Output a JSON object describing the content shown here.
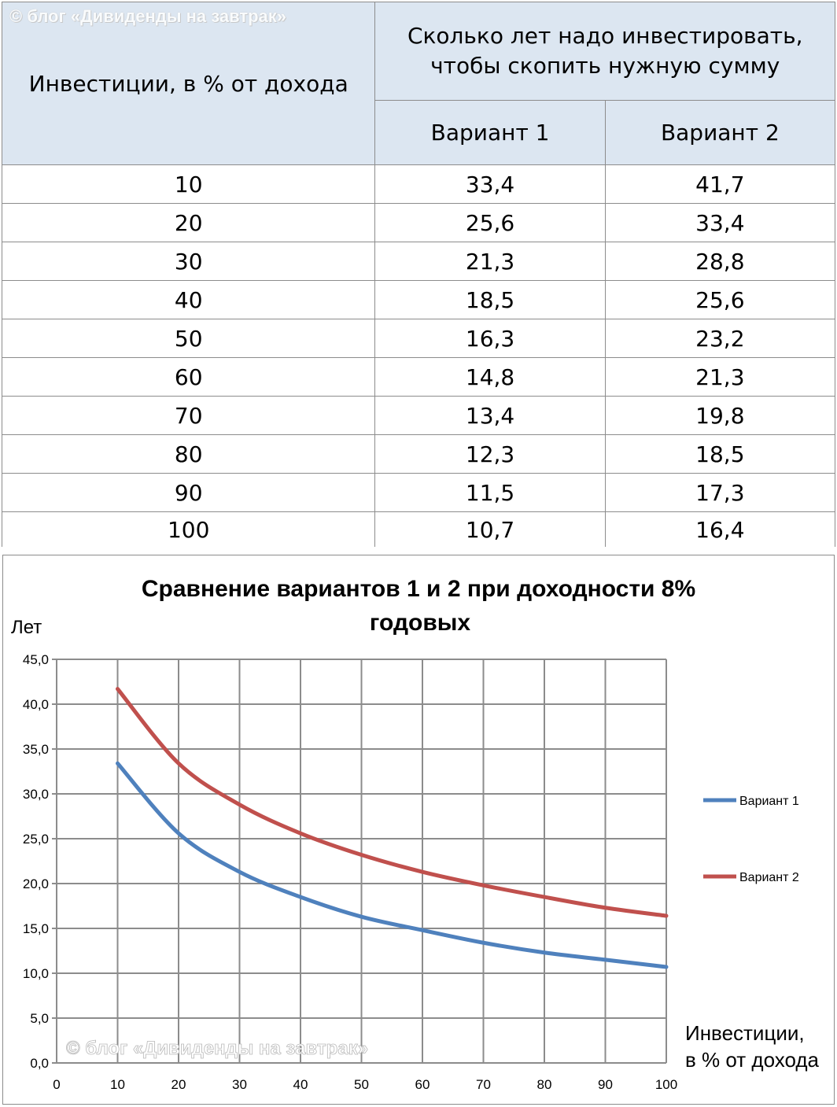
{
  "watermark": "© блог «Дивиденды на завтрак»",
  "table": {
    "header_left": "Инвестиции, в % от дохода",
    "header_group": [
      "Сколько лет надо инвестировать,",
      "чтобы скопить нужную сумму"
    ],
    "subheaders": [
      "Вариант 1",
      "Вариант 2"
    ],
    "rows": [
      [
        "10",
        "33,4",
        "41,7"
      ],
      [
        "20",
        "25,6",
        "33,4"
      ],
      [
        "30",
        "21,3",
        "28,8"
      ],
      [
        "40",
        "18,5",
        "25,6"
      ],
      [
        "50",
        "16,3",
        "23,2"
      ],
      [
        "60",
        "14,8",
        "21,3"
      ],
      [
        "70",
        "13,4",
        "19,8"
      ],
      [
        "80",
        "12,3",
        "18,5"
      ],
      [
        "90",
        "11,5",
        "17,3"
      ],
      [
        "100",
        "10,7",
        "16,4"
      ]
    ]
  },
  "chart_data": {
    "type": "line",
    "title": [
      "Сравнение  вариантов 1  и  2  при доходности 8%",
      "годовых"
    ],
    "ylabel": "Лет",
    "xlabel": [
      "Инвестиции,",
      "в % от дохода"
    ],
    "x": [
      10,
      20,
      30,
      40,
      50,
      60,
      70,
      80,
      90,
      100
    ],
    "xlim": [
      0,
      100
    ],
    "ylim": [
      0,
      45
    ],
    "xticks": [
      "0",
      "10",
      "20",
      "30",
      "40",
      "50",
      "60",
      "70",
      "80",
      "90",
      "100"
    ],
    "yticks": [
      "0,0",
      "5,0",
      "10,0",
      "15,0",
      "20,0",
      "25,0",
      "30,0",
      "35,0",
      "40,0",
      "45,0"
    ],
    "grid": true,
    "legend_position": "right",
    "series": [
      {
        "name": "Вариант 1",
        "color": "#4f81bd",
        "values": [
          33.4,
          25.6,
          21.3,
          18.5,
          16.3,
          14.8,
          13.4,
          12.3,
          11.5,
          10.7
        ]
      },
      {
        "name": "Вариант 2",
        "color": "#c0504d",
        "values": [
          41.7,
          33.4,
          28.8,
          25.6,
          23.2,
          21.3,
          19.8,
          18.5,
          17.3,
          16.4
        ]
      }
    ]
  }
}
